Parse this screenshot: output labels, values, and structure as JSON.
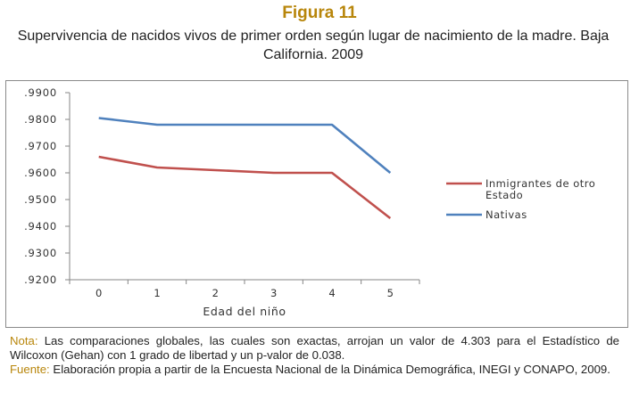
{
  "figure": {
    "label": "Figura 11",
    "title": "Supervivencia de nacidos vivos de primer orden según lugar de nacimiento de la madre. Baja California. 2009"
  },
  "chart_data": {
    "type": "line",
    "x": [
      0,
      1,
      2,
      3,
      4,
      5
    ],
    "tick_labels_x": [
      "0",
      "1",
      "2",
      "3",
      "4",
      "5"
    ],
    "tick_labels_y": [
      ".9200",
      ".9300",
      ".9400",
      ".9500",
      ".9600",
      ".9700",
      ".9800",
      ".9900"
    ],
    "ylim": [
      0.92,
      0.99
    ],
    "yticks": [
      0.92,
      0.93,
      0.94,
      0.95,
      0.96,
      0.97,
      0.98,
      0.99
    ],
    "xlabel": "Edad del niño",
    "ylabel": "",
    "grid": false,
    "legend_position": "right",
    "series": [
      {
        "name_line1": "Inmigrantes de otro",
        "name_line2": "Estado",
        "name": "Inmigrantes de otro Estado",
        "color": "#c0504d",
        "values": [
          0.966,
          0.962,
          0.961,
          0.96,
          0.96,
          0.943
        ]
      },
      {
        "name": "Nativas",
        "color": "#4f81bd",
        "values": [
          0.9805,
          0.978,
          0.978,
          0.978,
          0.978,
          0.96
        ]
      }
    ]
  },
  "notes": {
    "nota_label": "Nota:",
    "nota_text": " Las comparaciones globales, las cuales son exactas, arrojan un valor de  4.303 para el Estadístico de Wilcoxon (Gehan) con 1 grado de libertad y un p-valor de  0.038.",
    "fuente_label": "Fuente:",
    "fuente_text": " Elaboración propia a partir de la Encuesta Nacional de la Dinámica Demográfica, INEGI y CONAPO, 2009."
  }
}
